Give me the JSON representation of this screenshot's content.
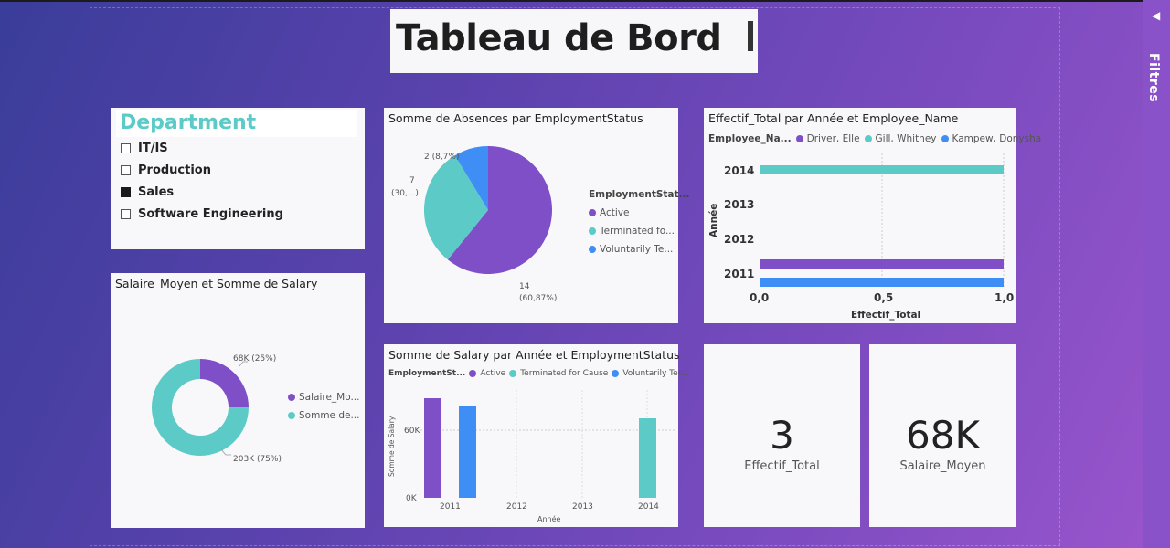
{
  "title": "Tableau de Bord",
  "filters_label": "Filtres",
  "colors": {
    "purple": "#7e4fc7",
    "teal": "#5ccac6",
    "blue": "#3f8ef5"
  },
  "slicer": {
    "title": "Department",
    "items": [
      {
        "label": "IT/IS",
        "checked": false
      },
      {
        "label": "Production",
        "checked": false
      },
      {
        "label": "Sales",
        "checked": true
      },
      {
        "label": "Software Engineering",
        "checked": false
      }
    ]
  },
  "pie_absences": {
    "title": "Somme de Absences par EmploymentStatus",
    "labels": {
      "a": "14",
      "a2": "(60,87%)",
      "b": "7",
      "b2": "(30,...)",
      "c": "2 (8,7%)"
    },
    "legend_title": "EmploymentStat...",
    "legend": [
      "Active",
      "Terminated fo...",
      "Voluntarily Te..."
    ]
  },
  "bar_effectif": {
    "title": "Effectif_Total par Année et Employee_Name",
    "legend_title": "Employee_Na...",
    "legend": [
      "Driver, Elle",
      "Gill, Whitney",
      "Kampew, Donysha"
    ],
    "y_title": "Année",
    "x_title": "Effectif_Total",
    "y_ticks": [
      "2014",
      "2013",
      "2012",
      "2011"
    ],
    "x_ticks": [
      "0,0",
      "0,5",
      "1,0"
    ]
  },
  "donut": {
    "title": "Salaire_Moyen et Somme de Salary",
    "label_a": "68K (25%)",
    "label_b": "203K (75%)",
    "legend": [
      "Salaire_Mo...",
      "Somme de..."
    ]
  },
  "col_salary": {
    "title": "Somme de Salary par Année et EmploymentStatus",
    "legend_title": "EmploymentSt...",
    "legend": [
      "Active",
      "Terminated for Cause",
      "Voluntarily Ter..."
    ],
    "y_title": "Somme de Salary",
    "x_title": "Année",
    "y_ticks": [
      "60K",
      "0K"
    ],
    "x_ticks": [
      "2011",
      "2012",
      "2013",
      "2014"
    ]
  },
  "kpi1": {
    "value": "3",
    "label": "Effectif_Total"
  },
  "kpi2": {
    "value": "68K",
    "label": "Salaire_Moyen"
  },
  "chart_data": [
    {
      "type": "pie",
      "title": "Somme de Absences par EmploymentStatus",
      "categories": [
        "Active",
        "Terminated for Cause",
        "Voluntarily Terminated"
      ],
      "values": [
        14,
        7,
        2
      ]
    },
    {
      "type": "bar",
      "title": "Effectif_Total par Année et Employee_Name",
      "xlim": [
        0,
        1
      ],
      "series": [
        {
          "name": "Driver, Elle",
          "year": "2011",
          "value": 1
        },
        {
          "name": "Gill, Whitney",
          "year": "2014",
          "value": 1
        },
        {
          "name": "Kampew, Donysha",
          "year": "2011",
          "value": 1
        }
      ]
    },
    {
      "type": "pie",
      "title": "Salaire_Moyen et Somme de Salary",
      "categories": [
        "Salaire_Moyen",
        "Somme de Salary"
      ],
      "values": [
        68,
        203
      ]
    },
    {
      "type": "bar",
      "title": "Somme de Salary par Année et EmploymentStatus",
      "ylim": [
        0,
        80
      ],
      "series": [
        {
          "name": "Active",
          "year": "2011",
          "value": 74
        },
        {
          "name": "Voluntarily Terminated",
          "year": "2011",
          "value": 68
        },
        {
          "name": "Terminated for Cause",
          "year": "2014",
          "value": 60
        }
      ]
    }
  ]
}
